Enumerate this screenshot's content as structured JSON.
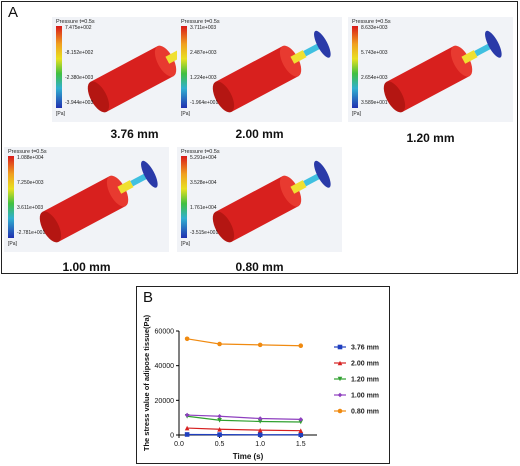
{
  "panel_a": {
    "letter": "A",
    "simulations": [
      {
        "caption": "3.76 mm",
        "header": "Pressure   t=0.5s",
        "ticks": [
          "7.475e+002",
          "-8.152e+002",
          "-2.380e+003",
          "-3.944e+003"
        ],
        "unit": "[Pa]",
        "disc_color": "#e0b020"
      },
      {
        "caption": "2.00 mm",
        "header": "Pressure   t=0.5s",
        "ticks": [
          "3.711e+003",
          "2.487e+003",
          "1.224e+003",
          "-1.964e+001"
        ],
        "unit": "[Pa]",
        "disc_color": "#2a3aa8"
      },
      {
        "caption": "1.20 mm",
        "header": "Pressure   t=0.5s",
        "ticks": [
          "8.633e+003",
          "5.743e+003",
          "2.654e+003",
          "3.589e+001"
        ],
        "unit": "[Pa]",
        "disc_color": "#2a3aa8"
      },
      {
        "caption": "1.00 mm",
        "header": "Pressure   t=0.5s",
        "ticks": [
          "1.088e+004",
          "7.250e+003",
          "3.611e+003",
          "-2.781e+001"
        ],
        "unit": "[Pa]",
        "disc_color": "#2a3aa8"
      },
      {
        "caption": "0.80 mm",
        "header": "Pressure   t=0.5s",
        "ticks": [
          "5.291e+004",
          "3.528e+004",
          "1.761e+004",
          "-3.515e+001"
        ],
        "unit": "[Pa]",
        "disc_color": "#2a3aa8"
      }
    ]
  },
  "panel_b": {
    "letter": "B"
  },
  "chart_data": {
    "type": "line",
    "xlabel": "Time (s)",
    "ylabel": "The stress value of adipose tissue(Pa)",
    "xlim": [
      0,
      1.7
    ],
    "ylim": [
      0,
      60000
    ],
    "xticks": [
      "0.0",
      "0.5",
      "1.0",
      "1.5"
    ],
    "yticks": [
      "0",
      "20000",
      "40000",
      "60000"
    ],
    "legend_position": "right",
    "series": [
      {
        "name": "3.76 mm",
        "color": "#1f3fbf",
        "marker": "square",
        "x": [
          0.1,
          0.5,
          1.0,
          1.5
        ],
        "y": [
          300,
          200,
          150,
          150
        ]
      },
      {
        "name": "2.00 mm",
        "color": "#d62020",
        "marker": "triangle",
        "x": [
          0.1,
          0.5,
          1.0,
          1.5
        ],
        "y": [
          4000,
          3300,
          2800,
          2500
        ]
      },
      {
        "name": "1.20 mm",
        "color": "#2fa02f",
        "marker": "triangle-down",
        "x": [
          0.1,
          0.5,
          1.0,
          1.5
        ],
        "y": [
          10800,
          8500,
          7800,
          7500
        ]
      },
      {
        "name": "1.00 mm",
        "color": "#8e3fbf",
        "marker": "diamond",
        "x": [
          0.1,
          0.5,
          1.0,
          1.5
        ],
        "y": [
          11500,
          10800,
          9500,
          9000
        ]
      },
      {
        "name": "0.80 mm",
        "color": "#f08a10",
        "marker": "circle",
        "x": [
          0.1,
          0.5,
          1.0,
          1.5
        ],
        "y": [
          55500,
          52500,
          52000,
          51500
        ]
      }
    ]
  }
}
